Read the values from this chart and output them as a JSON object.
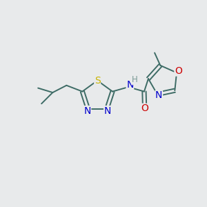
{
  "background_color": "#e8eaeb",
  "bond_color": "#3d6b65",
  "atom_colors": {
    "S": "#c8b400",
    "N": "#0000cc",
    "O": "#cc0000",
    "H": "#7a9a95",
    "C": "#3d6b65"
  },
  "font_size_atoms": 10,
  "font_size_h": 8.5,
  "lw": 1.4
}
